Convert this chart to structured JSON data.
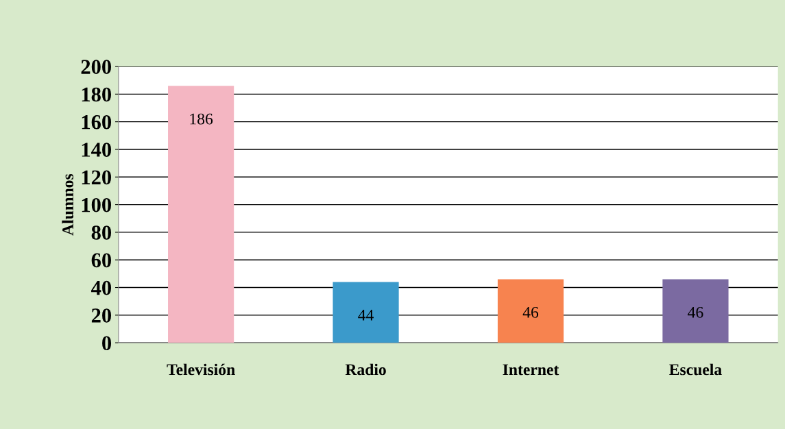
{
  "chart_data": {
    "type": "bar",
    "ylabel": "Alumnos",
    "categories": [
      "Televisión",
      "Radio",
      "Internet",
      "Escuela"
    ],
    "values": [
      186,
      44,
      46,
      46
    ],
    "colors": [
      "#f4b6c2",
      "#3b9acb",
      "#f7834f",
      "#7b6aa1"
    ],
    "ylim": [
      0,
      200
    ],
    "yticks": [
      0,
      20,
      40,
      60,
      80,
      100,
      120,
      140,
      160,
      180,
      200
    ],
    "grid": "y",
    "data_labels": true,
    "legend": false
  }
}
